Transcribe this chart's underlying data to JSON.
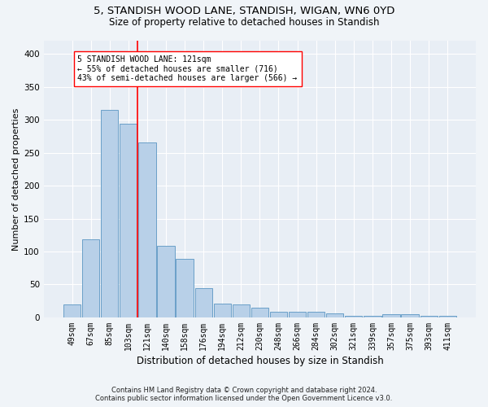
{
  "title1": "5, STANDISH WOOD LANE, STANDISH, WIGAN, WN6 0YD",
  "title2": "Size of property relative to detached houses in Standish",
  "xlabel": "Distribution of detached houses by size in Standish",
  "ylabel": "Number of detached properties",
  "footer1": "Contains HM Land Registry data © Crown copyright and database right 2024.",
  "footer2": "Contains public sector information licensed under the Open Government Licence v3.0.",
  "annotation_line1": "5 STANDISH WOOD LANE: 121sqm",
  "annotation_line2": "← 55% of detached houses are smaller (716)",
  "annotation_line3": "43% of semi-detached houses are larger (566) →",
  "bar_color": "#b8d0e8",
  "bar_edge_color": "#6aa0c8",
  "background_color": "#e8eef5",
  "grid_color": "#ffffff",
  "categories": [
    "49sqm",
    "67sqm",
    "85sqm",
    "103sqm",
    "121sqm",
    "140sqm",
    "158sqm",
    "176sqm",
    "194sqm",
    "212sqm",
    "230sqm",
    "248sqm",
    "266sqm",
    "284sqm",
    "302sqm",
    "321sqm",
    "339sqm",
    "357sqm",
    "375sqm",
    "393sqm",
    "411sqm"
  ],
  "values": [
    20,
    119,
    315,
    294,
    265,
    109,
    89,
    45,
    21,
    20,
    15,
    9,
    8,
    8,
    6,
    3,
    3,
    5,
    5,
    3,
    3
  ],
  "red_line_idx": 4,
  "ylim": [
    0,
    420
  ],
  "yticks": [
    0,
    50,
    100,
    150,
    200,
    250,
    300,
    350,
    400
  ]
}
